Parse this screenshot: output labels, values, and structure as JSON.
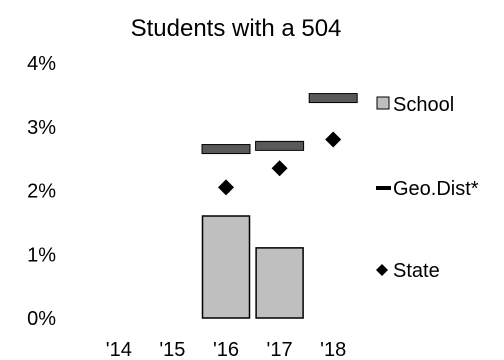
{
  "chart_data": {
    "type": "bar",
    "title": "Students with a 504",
    "xlabel": "",
    "ylabel": "",
    "categories": [
      "'14",
      "'15",
      "'16",
      "'17",
      "'18"
    ],
    "y_tick_labels": [
      "0%",
      "1%",
      "2%",
      "3%",
      "4%"
    ],
    "ylim": [
      0,
      4
    ],
    "grid": false,
    "legend_position": "right",
    "series": [
      {
        "name": "School",
        "type": "bar",
        "color": "#bfbfbf",
        "values": [
          null,
          null,
          1.6,
          1.1,
          null
        ]
      },
      {
        "name": "Geo.Dist*",
        "type": "dash",
        "color": "#595959",
        "values": [
          null,
          null,
          2.65,
          2.7,
          3.45
        ]
      },
      {
        "name": "State",
        "type": "diamond",
        "color": "#000000",
        "values": [
          null,
          null,
          2.05,
          2.35,
          2.8
        ]
      }
    ]
  }
}
